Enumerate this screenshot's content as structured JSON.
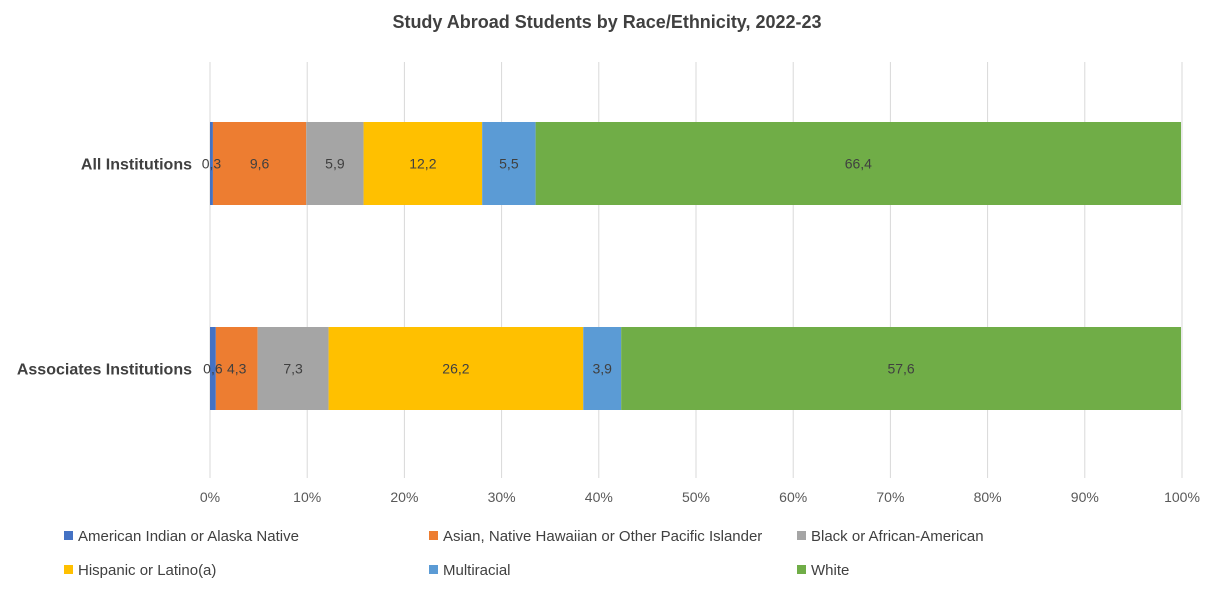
{
  "chart_data": {
    "type": "bar",
    "orientation": "horizontal",
    "stacked": "percent",
    "title": "Study Abroad Students by Race/Ethnicity, 2022-23",
    "categories": [
      "All Institutions",
      "Associates Institutions"
    ],
    "x_ticks": [
      "0%",
      "10%",
      "20%",
      "30%",
      "40%",
      "50%",
      "60%",
      "70%",
      "80%",
      "90%",
      "100%"
    ],
    "xlim": [
      0,
      100
    ],
    "grid": true,
    "legend_position": "bottom",
    "series": [
      {
        "name": "American Indian or Alaska Native",
        "color": "#4472C4",
        "values": [
          0.3,
          0.6
        ],
        "labels": [
          "0,3",
          "0,6"
        ]
      },
      {
        "name": "Asian, Native Hawaiian or Other Pacific Islander",
        "color": "#ED7D31",
        "values": [
          9.6,
          4.3
        ],
        "labels": [
          "9,6",
          "4,3"
        ]
      },
      {
        "name": "Black or African-American",
        "color": "#A5A5A5",
        "values": [
          5.9,
          7.3
        ],
        "labels": [
          "5,9",
          "7,3"
        ]
      },
      {
        "name": "Hispanic or Latino(a)",
        "color": "#FFC000",
        "values": [
          12.2,
          26.2
        ],
        "labels": [
          "12,2",
          "26,2"
        ]
      },
      {
        "name": "Multiracial",
        "color": "#5B9BD5",
        "values": [
          5.5,
          3.9
        ],
        "labels": [
          "5,5",
          "3,9"
        ]
      },
      {
        "name": "White",
        "color": "#70AD47",
        "values": [
          66.4,
          57.6
        ],
        "labels": [
          "66,4",
          "57,6"
        ]
      }
    ]
  }
}
